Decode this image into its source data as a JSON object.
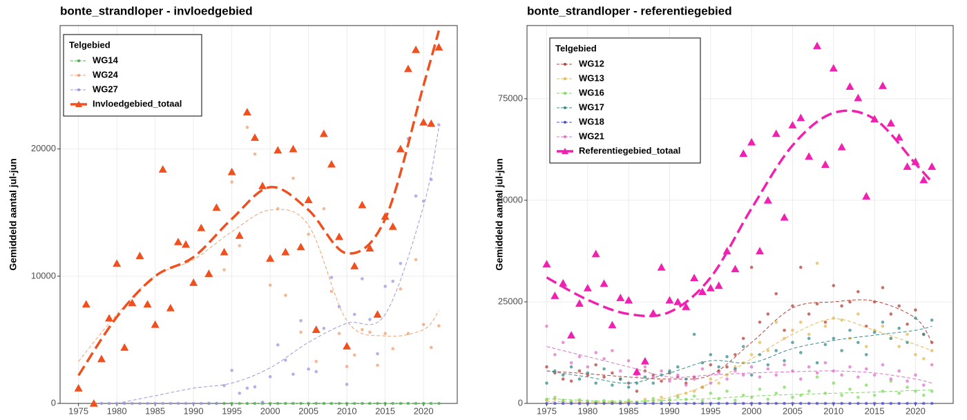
{
  "chart_data": [
    {
      "type": "line",
      "title": "bonte_strandloper - invloedgebied",
      "ylabel": "Gemiddeld aantal jul-jun",
      "legend_title": "Telgebied",
      "x": [
        1975,
        1976,
        1977,
        1978,
        1979,
        1980,
        1981,
        1982,
        1983,
        1984,
        1985,
        1986,
        1987,
        1988,
        1989,
        1990,
        1991,
        1992,
        1993,
        1994,
        1995,
        1996,
        1997,
        1998,
        1999,
        2000,
        2001,
        2002,
        2003,
        2004,
        2005,
        2006,
        2007,
        2008,
        2009,
        2010,
        2011,
        2012,
        2013,
        2014,
        2015,
        2016,
        2017,
        2018,
        2019,
        2020,
        2021,
        2022
      ],
      "trend_x": [
        1975,
        1980,
        1985,
        1990,
        1995,
        2000,
        2005,
        2010,
        2015,
        2020,
        2022
      ],
      "xlim": [
        1972.6,
        2024.4
      ],
      "xticks": [
        1975,
        1980,
        1985,
        1990,
        1995,
        2000,
        2005,
        2010,
        2015,
        2020
      ],
      "ylim": [
        0,
        29700
      ],
      "yticks": [
        0,
        10000,
        20000
      ],
      "grid": true,
      "legend": "top-left",
      "series": [
        {
          "name": "WG14",
          "color": "#4daf4a",
          "marker": "circle",
          "linewidth": 1,
          "values": [
            null,
            null,
            null,
            null,
            null,
            null,
            null,
            null,
            null,
            null,
            null,
            null,
            null,
            null,
            null,
            null,
            null,
            0,
            0,
            0,
            0,
            0,
            0,
            0,
            0,
            0,
            0,
            0,
            0,
            0,
            0,
            0,
            0,
            0,
            0,
            0,
            0,
            0,
            0,
            0,
            0,
            0,
            0,
            0,
            0,
            0,
            0,
            0
          ],
          "trend": [
            null,
            null,
            null,
            null,
            0,
            0,
            0,
            0,
            0,
            0,
            0
          ]
        },
        {
          "name": "WG24",
          "color": "#f0a070",
          "marker": "circle",
          "linewidth": 1,
          "values": [
            1200,
            7800,
            0,
            3500,
            6700,
            11000,
            4400,
            7900,
            11600,
            7800,
            6200,
            18400,
            7500,
            12700,
            12500,
            9500,
            13800,
            10200,
            15400,
            10500,
            17400,
            12400,
            21700,
            19600,
            17000,
            9300,
            15300,
            8500,
            17700,
            5600,
            13300,
            3300,
            15300,
            8800,
            5500,
            2900,
            3800,
            5800,
            5600,
            3000,
            5500,
            4300,
            9000,
            5500,
            11300,
            6200,
            4400,
            6100
          ],
          "trend": [
            3300,
            7000,
            10000,
            11300,
            13500,
            15200,
            14000,
            6500,
            5300,
            5800,
            7300
          ]
        },
        {
          "name": "WG27",
          "color": "#9b95e0",
          "marker": "circle",
          "linewidth": 1,
          "values": [
            null,
            null,
            null,
            0,
            0,
            0,
            0,
            0,
            0,
            0,
            0,
            0,
            0,
            0,
            0,
            0,
            0,
            0,
            0,
            1400,
            2600,
            800,
            1200,
            1300,
            100,
            2100,
            4600,
            3400,
            2300,
            6500,
            2700,
            2500,
            5900,
            9900,
            7600,
            1500,
            7000,
            9800,
            6600,
            3900,
            9200,
            9600,
            11000,
            20800,
            16300,
            15900,
            17600,
            21900
          ],
          "trend": [
            null,
            0,
            600,
            1200,
            1600,
            2800,
            4800,
            6300,
            7000,
            15500,
            21700
          ]
        },
        {
          "name": "Invloedgebied_totaal",
          "color": "#f0501e",
          "marker": "triangle",
          "linewidth": 3.5,
          "values": [
            1200,
            7800,
            0,
            3500,
            6700,
            11000,
            4400,
            7900,
            11600,
            7800,
            6200,
            18400,
            7500,
            12700,
            12500,
            9500,
            13800,
            10200,
            15400,
            11900,
            18200,
            13200,
            22900,
            20900,
            17100,
            11400,
            19900,
            11900,
            20000,
            12300,
            16000,
            5800,
            21200,
            18800,
            13100,
            4500,
            10800,
            15600,
            12200,
            7000,
            14700,
            13900,
            20000,
            26300,
            27800,
            22100,
            22000,
            28000
          ],
          "trend": [
            2200,
            6800,
            10000,
            11500,
            14500,
            17000,
            15200,
            11800,
            14500,
            25000,
            29300
          ]
        }
      ]
    },
    {
      "type": "line",
      "title": "bonte_strandloper - referentiegebied",
      "ylabel": "Gemiddeld aantal jul-jun",
      "legend_title": "Telgebied",
      "x": [
        1975,
        1976,
        1977,
        1978,
        1979,
        1980,
        1981,
        1982,
        1983,
        1984,
        1985,
        1986,
        1987,
        1988,
        1989,
        1990,
        1991,
        1992,
        1993,
        1994,
        1995,
        1996,
        1997,
        1998,
        1999,
        2000,
        2001,
        2002,
        2003,
        2004,
        2005,
        2006,
        2007,
        2008,
        2009,
        2010,
        2011,
        2012,
        2013,
        2014,
        2015,
        2016,
        2017,
        2018,
        2019,
        2020,
        2021,
        2022
      ],
      "trend_x": [
        1975,
        1980,
        1985,
        1990,
        1995,
        2000,
        2005,
        2010,
        2015,
        2020,
        2022
      ],
      "xlim": [
        1972.6,
        2024.6
      ],
      "xticks": [
        1975,
        1980,
        1985,
        1990,
        1995,
        2000,
        2005,
        2010,
        2015,
        2020
      ],
      "ylim": [
        0,
        93000
      ],
      "yticks": [
        0,
        25000,
        50000,
        75000
      ],
      "grid": true,
      "legend": "top-left",
      "series": [
        {
          "name": "WG12",
          "color": "#b5413a",
          "marker": "circle",
          "linewidth": 1,
          "values": [
            9000,
            7500,
            6000,
            5500,
            8000,
            7000,
            9500,
            6500,
            7500,
            6000,
            5000,
            3000,
            8000,
            7000,
            5500,
            7500,
            6500,
            5000,
            6500,
            4000,
            9500,
            8000,
            9000,
            12000,
            16000,
            33500,
            20000,
            22000,
            27000,
            18000,
            24000,
            33500,
            22000,
            24500,
            20000,
            29000,
            24000,
            25000,
            27500,
            19000,
            25000,
            28500,
            22000,
            24000,
            19500,
            23000,
            17000,
            15000
          ],
          "trend": [
            8000,
            7300,
            6500,
            6000,
            7000,
            15000,
            23500,
            25000,
            25200,
            21000,
            15000
          ]
        },
        {
          "name": "WG13",
          "color": "#e3b954",
          "marker": "circle",
          "linewidth": 1,
          "values": [
            800,
            1000,
            500,
            300,
            600,
            200,
            400,
            300,
            500,
            200,
            400,
            300,
            1000,
            600,
            1500,
            800,
            2000,
            2500,
            3000,
            4000,
            6000,
            5000,
            7000,
            9000,
            10000,
            12000,
            15000,
            13000,
            20000,
            16000,
            18000,
            20000,
            17000,
            34500,
            19000,
            21000,
            20500,
            16000,
            22000,
            14000,
            18000,
            19000,
            16000,
            14000,
            17000,
            12000,
            11000,
            13000
          ],
          "trend": [
            500,
            300,
            300,
            1500,
            5000,
            11000,
            17000,
            20800,
            18000,
            14500,
            13000
          ]
        },
        {
          "name": "WG16",
          "color": "#7cdc5a",
          "marker": "circle",
          "linewidth": 1,
          "values": [
            1000,
            1500,
            800,
            500,
            900,
            600,
            400,
            700,
            300,
            500,
            800,
            200,
            400,
            1200,
            600,
            900,
            1500,
            1000,
            1800,
            600,
            2500,
            1200,
            3000,
            800,
            2000,
            1500,
            3500,
            1000,
            2500,
            4000,
            1500,
            2000,
            3000,
            6500,
            2500,
            5000,
            2000,
            3500,
            1500,
            4500,
            2000,
            3000,
            5500,
            2500,
            4000,
            3000,
            2000,
            3000
          ],
          "trend": [
            1200,
            700,
            500,
            800,
            1200,
            1800,
            2200,
            2500,
            2800,
            3200,
            3300
          ]
        },
        {
          "name": "WG17",
          "color": "#3a8c8c",
          "marker": "circle",
          "linewidth": 1,
          "values": [
            5000,
            8000,
            7000,
            9000,
            6000,
            7500,
            5000,
            8500,
            4500,
            6000,
            4000,
            5000,
            6500,
            5000,
            7000,
            8000,
            9000,
            6000,
            17000,
            10000,
            12000,
            9000,
            11500,
            8500,
            14000,
            7000,
            12000,
            9500,
            13000,
            10500,
            15000,
            12500,
            16000,
            10000,
            14500,
            16000,
            13000,
            18000,
            15000,
            12000,
            17500,
            20000,
            16000,
            18500,
            15000,
            21000,
            17000,
            20500
          ],
          "trend": [
            8000,
            6500,
            5000,
            7500,
            10500,
            10000,
            13500,
            15500,
            16800,
            18000,
            19000
          ]
        },
        {
          "name": "WG18",
          "color": "#5050d0",
          "marker": "circle",
          "linewidth": 1,
          "values": [
            0,
            0,
            0,
            0,
            0,
            0,
            0,
            0,
            0,
            0,
            0,
            0,
            0,
            0,
            0,
            0,
            0,
            0,
            0,
            0,
            0,
            0,
            0,
            0,
            0,
            0,
            0,
            0,
            0,
            0,
            0,
            0,
            0,
            0,
            0,
            0,
            0,
            0,
            0,
            0,
            0,
            0,
            0,
            0,
            0,
            0,
            0,
            0
          ],
          "trend": [
            0,
            0,
            0,
            0,
            0,
            0,
            0,
            0,
            0,
            0,
            0
          ]
        },
        {
          "name": "WG21",
          "color": "#e070c8",
          "marker": "circle",
          "linewidth": 1,
          "values": [
            19000,
            12000,
            15000,
            10000,
            11500,
            9000,
            12500,
            11000,
            13000,
            8000,
            10500,
            7000,
            9000,
            6500,
            8000,
            5500,
            7000,
            4500,
            6000,
            8500,
            5000,
            7500,
            6000,
            8000,
            7000,
            9000,
            6500,
            8500,
            7000,
            9500,
            8000,
            6000,
            9000,
            7500,
            10000,
            8000,
            7000,
            9000,
            6500,
            8500,
            7000,
            9500,
            6000,
            8000,
            5500,
            7000,
            4500,
            9500
          ],
          "trend": [
            14000,
            11500,
            9000,
            6500,
            7000,
            7500,
            7800,
            8000,
            7500,
            6000,
            5000
          ]
        },
        {
          "name": "Referentiegebied_totaal",
          "color": "#f020b0",
          "marker": "triangle",
          "linewidth": 3.5,
          "values": [
            34300,
            26500,
            29600,
            16800,
            24600,
            28400,
            36800,
            29500,
            19300,
            26000,
            25400,
            7800,
            10400,
            22200,
            33500,
            25400,
            25000,
            23800,
            30900,
            27500,
            28400,
            29000,
            37500,
            33100,
            61500,
            64300,
            37500,
            50000,
            66400,
            45800,
            68500,
            70300,
            60800,
            88000,
            58800,
            82500,
            63100,
            78000,
            75200,
            51000,
            70000,
            78200,
            69000,
            65500,
            58300,
            59500,
            55000,
            58300
          ],
          "trend": [
            31000,
            25500,
            22000,
            22500,
            31000,
            48000,
            63500,
            71500,
            70000,
            59000,
            54500
          ]
        }
      ]
    }
  ]
}
